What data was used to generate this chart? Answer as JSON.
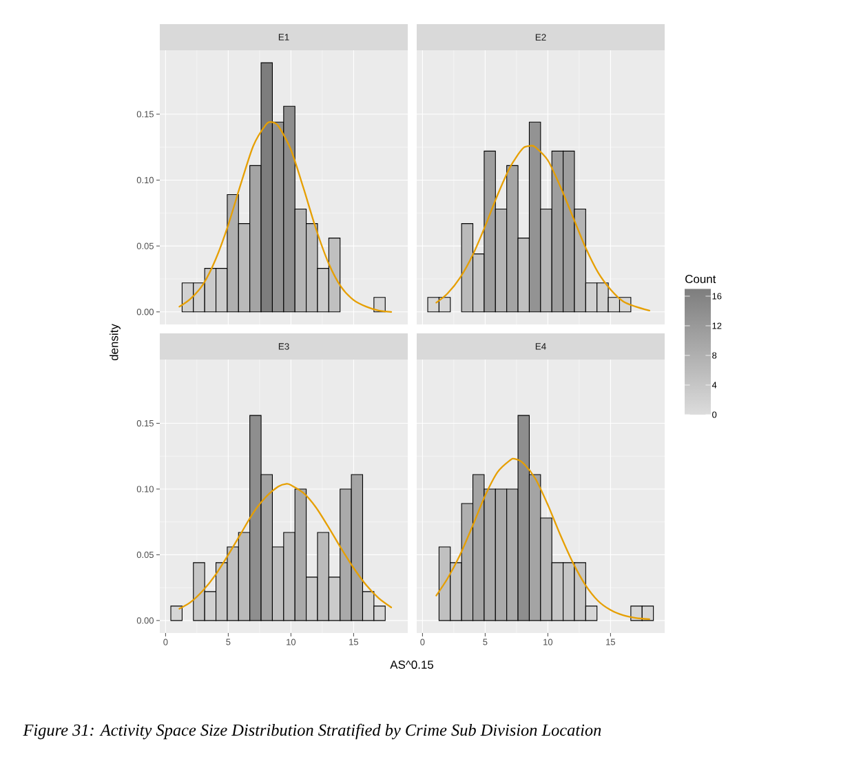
{
  "chart_data": [
    {
      "type": "histogram",
      "title": "E1",
      "ylabel": "density",
      "xlim": [
        -0.46,
        19.32
      ],
      "ylim": [
        -0.0095,
        0.1985
      ],
      "xticks": [
        0,
        5,
        10,
        15
      ],
      "yticks": [
        {
          "value": 0,
          "label": "0.00"
        },
        {
          "value": 0.05,
          "label": "0.05"
        },
        {
          "value": 0.1,
          "label": "0.10"
        },
        {
          "value": 0.15,
          "label": "0.15"
        }
      ],
      "grid": true,
      "tick_labels": "y",
      "series": [
        {
          "type": "histogram",
          "bins": [
            0.42,
            1.32,
            2.22,
            3.12,
            4.02,
            4.92,
            5.82,
            6.72,
            7.62,
            8.52,
            9.42,
            10.32,
            11.22,
            12.12,
            13.02,
            13.92,
            14.82,
            15.72,
            16.62,
            17.52,
            18.42
          ],
          "values": [
            0,
            0.022,
            0.022,
            0.033,
            0.033,
            0.089,
            0.067,
            0.111,
            0.189,
            0.144,
            0.156,
            0.078,
            0.067,
            0.033,
            0.056,
            0,
            0,
            0,
            0.011,
            0
          ],
          "colors": [
            "#dcdcdc",
            "#d1d1d1",
            "#d1d1d1",
            "#cbcbcb",
            "#cbcbcb",
            "#afafaf",
            "#bababa",
            "#a4a4a4",
            "#7d7d7d",
            "#939393",
            "#8e8e8e",
            "#b5b5b5",
            "#bababa",
            "#cbcbcb",
            "#c0c0c0",
            "#dcdcdc",
            "#dcdcdc",
            "#dcdcdc",
            "#d6d6d6",
            "#dcdcdc"
          ]
        },
        {
          "type": "line",
          "color": "#e69f00",
          "x": [
            1.1,
            2,
            3,
            4,
            5,
            6,
            7,
            8,
            8.45,
            9,
            10,
            11,
            12,
            13,
            14,
            15,
            16,
            17,
            18
          ],
          "values": [
            0.004,
            0.01,
            0.021,
            0.04,
            0.066,
            0.097,
            0.126,
            0.142,
            0.144,
            0.141,
            0.123,
            0.094,
            0.063,
            0.037,
            0.019,
            0.009,
            0.004,
            0.001,
            0
          ]
        }
      ]
    },
    {
      "type": "histogram",
      "title": "E2",
      "xlim": [
        -0.46,
        19.32
      ],
      "ylim": [
        -0.0095,
        0.1985
      ],
      "xticks": [
        0,
        5,
        10,
        15
      ],
      "yticks": [
        0,
        0.05,
        0.1,
        0.15
      ],
      "grid": true,
      "tick_labels": false,
      "clabel": "Count",
      "clim": [
        0,
        17
      ],
      "cticks": [
        0,
        4,
        8,
        12,
        16
      ],
      "series": [
        {
          "type": "histogram",
          "bins": [
            0.42,
            1.32,
            2.22,
            3.12,
            4.02,
            4.92,
            5.82,
            6.72,
            7.62,
            8.52,
            9.42,
            10.32,
            11.22,
            12.12,
            13.02,
            13.92,
            14.82,
            15.72,
            16.62,
            17.52,
            18.42
          ],
          "values": [
            0.011,
            0.011,
            0,
            0.067,
            0.044,
            0.122,
            0.078,
            0.111,
            0.056,
            0.144,
            0.078,
            0.122,
            0.122,
            0.078,
            0.022,
            0.022,
            0.011,
            0.011,
            0,
            0
          ],
          "colors": [
            "#d6d6d6",
            "#d6d6d6",
            "#dcdcdc",
            "#bababa",
            "#c6c6c6",
            "#9e9e9e",
            "#b5b5b5",
            "#a4a4a4",
            "#c0c0c0",
            "#939393",
            "#b5b5b5",
            "#9e9e9e",
            "#9e9e9e",
            "#b5b5b5",
            "#d1d1d1",
            "#d1d1d1",
            "#d6d6d6",
            "#d6d6d6",
            "#dcdcdc",
            "#dcdcdc"
          ]
        },
        {
          "type": "line",
          "color": "#e69f00",
          "x": [
            1.1,
            2,
            3,
            4,
            5,
            6,
            7,
            8,
            8.63,
            9,
            10,
            11,
            12,
            13,
            14,
            15,
            16,
            17,
            18.1
          ],
          "values": [
            0.007,
            0.014,
            0.026,
            0.043,
            0.065,
            0.089,
            0.11,
            0.124,
            0.126,
            0.125,
            0.115,
            0.095,
            0.072,
            0.049,
            0.03,
            0.017,
            0.008,
            0.004,
            0.001
          ]
        }
      ]
    },
    {
      "type": "histogram",
      "title": "E3",
      "xlabel": "AS^0.15",
      "xlim": [
        -0.46,
        19.32
      ],
      "ylim": [
        -0.0095,
        0.1985
      ],
      "xticks": [
        0,
        5,
        10,
        15
      ],
      "yticks": [
        {
          "value": 0,
          "label": "0.00"
        },
        {
          "value": 0.05,
          "label": "0.05"
        },
        {
          "value": 0.1,
          "label": "0.10"
        },
        {
          "value": 0.15,
          "label": "0.15"
        }
      ],
      "grid": true,
      "series": [
        {
          "type": "histogram",
          "bins": [
            0.42,
            1.32,
            2.22,
            3.12,
            4.02,
            4.92,
            5.82,
            6.72,
            7.62,
            8.52,
            9.42,
            10.32,
            11.22,
            12.12,
            13.02,
            13.92,
            14.82,
            15.72,
            16.62,
            17.52,
            18.42
          ],
          "values": [
            0.011,
            0,
            0.044,
            0.022,
            0.044,
            0.056,
            0.067,
            0.156,
            0.111,
            0.056,
            0.067,
            0.1,
            0.033,
            0.067,
            0.033,
            0.1,
            0.111,
            0.022,
            0.011,
            0
          ],
          "colors": [
            "#d6d6d6",
            "#dcdcdc",
            "#c6c6c6",
            "#d1d1d1",
            "#c6c6c6",
            "#c0c0c0",
            "#bababa",
            "#8e8e8e",
            "#a4a4a4",
            "#c0c0c0",
            "#bababa",
            "#aaaaaa",
            "#cbcbcb",
            "#bababa",
            "#cbcbcb",
            "#aaaaaa",
            "#a4a4a4",
            "#d1d1d1",
            "#d6d6d6",
            "#dcdcdc"
          ]
        },
        {
          "type": "line",
          "color": "#e69f00",
          "x": [
            1.1,
            2,
            3,
            4,
            5,
            6,
            7,
            8,
            9,
            9.66,
            10,
            11,
            12,
            13,
            14,
            15,
            16,
            17,
            18
          ],
          "values": [
            0.009,
            0.014,
            0.023,
            0.035,
            0.05,
            0.066,
            0.082,
            0.094,
            0.102,
            0.104,
            0.103,
            0.097,
            0.086,
            0.071,
            0.055,
            0.04,
            0.027,
            0.017,
            0.01
          ]
        }
      ]
    },
    {
      "type": "histogram",
      "title": "E4",
      "xlim": [
        -0.46,
        19.32
      ],
      "ylim": [
        -0.0095,
        0.1985
      ],
      "xticks": [
        0,
        5,
        10,
        15
      ],
      "yticks": [
        0,
        0.05,
        0.1,
        0.15
      ],
      "grid": true,
      "tick_labels": "x",
      "annotations": [
        "Figure 31: Activity Space Size Distribution Stratified by Crime Sub Division Location"
      ],
      "series": [
        {
          "type": "histogram",
          "bins": [
            0.42,
            1.32,
            2.22,
            3.12,
            4.02,
            4.92,
            5.82,
            6.72,
            7.62,
            8.52,
            9.42,
            10.32,
            11.22,
            12.12,
            13.02,
            13.92,
            14.82,
            15.72,
            16.62,
            17.52,
            18.42
          ],
          "values": [
            0,
            0.056,
            0.044,
            0.089,
            0.111,
            0.1,
            0.1,
            0.1,
            0.156,
            0.111,
            0.078,
            0.044,
            0.044,
            0.044,
            0.011,
            0,
            0,
            0,
            0.011,
            0.011
          ],
          "colors": [
            "#dcdcdc",
            "#c0c0c0",
            "#c6c6c6",
            "#afafaf",
            "#a4a4a4",
            "#aaaaaa",
            "#aaaaaa",
            "#aaaaaa",
            "#8e8e8e",
            "#a4a4a4",
            "#b5b5b5",
            "#c6c6c6",
            "#c6c6c6",
            "#c6c6c6",
            "#d6d6d6",
            "#dcdcdc",
            "#dcdcdc",
            "#dcdcdc",
            "#d6d6d6",
            "#d6d6d6"
          ]
        },
        {
          "type": "line",
          "color": "#e69f00",
          "x": [
            1.1,
            2,
            3,
            4,
            5,
            6,
            7,
            7.35,
            8,
            9,
            10,
            11,
            12,
            13,
            14,
            15,
            16,
            17,
            18.1
          ],
          "values": [
            0.019,
            0.032,
            0.05,
            0.072,
            0.095,
            0.113,
            0.122,
            0.123,
            0.12,
            0.108,
            0.088,
            0.065,
            0.044,
            0.027,
            0.015,
            0.008,
            0.004,
            0.002,
            0.001
          ]
        }
      ]
    }
  ]
}
